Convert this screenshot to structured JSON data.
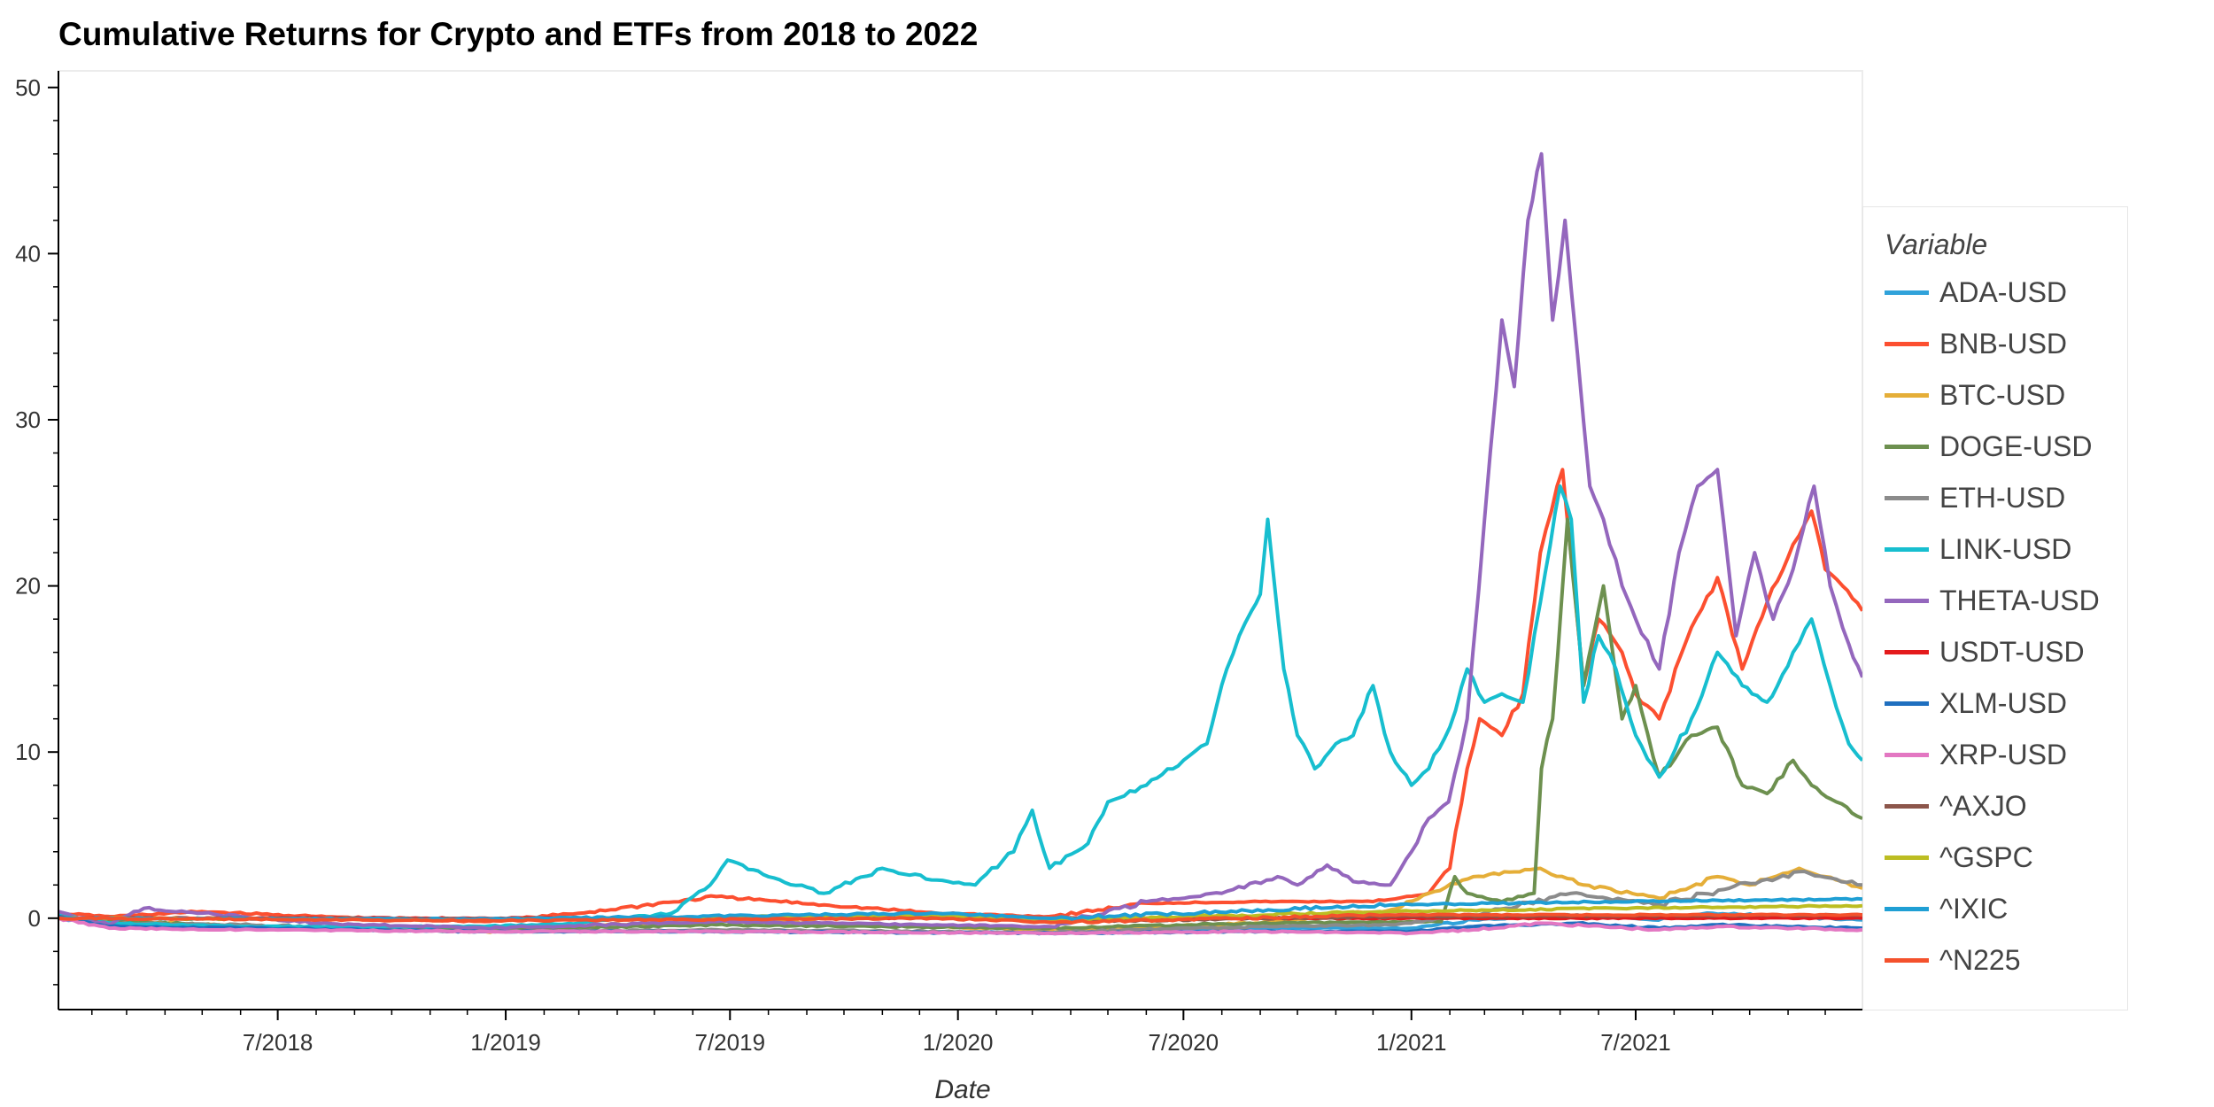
{
  "chart_data": {
    "type": "line",
    "title": "Cumulative Returns for Crypto and ETFs from 2018 to 2022",
    "xlabel": "Date",
    "ylabel": "",
    "xlim": [
      "2018-01-05",
      "2021-12-31"
    ],
    "ylim": [
      -5.5,
      51
    ],
    "x_ticks": [
      "7/2018",
      "1/2019",
      "7/2019",
      "1/2020",
      "7/2020",
      "1/2021",
      "7/2021"
    ],
    "y_ticks": [
      0,
      10,
      20,
      30,
      40,
      50
    ],
    "grid": false,
    "legend": {
      "title": "Variable",
      "position": "right"
    },
    "series": [
      {
        "name": "ADA-USD",
        "color": "#30a2da",
        "points": [
          [
            "2018-01-05",
            0
          ],
          [
            "2018-02-15",
            -0.4
          ],
          [
            "2018-06-01",
            -0.6
          ],
          [
            "2018-12-15",
            -0.8
          ],
          [
            "2019-06-01",
            -0.8
          ],
          [
            "2020-03-15",
            -0.85
          ],
          [
            "2020-09-01",
            -0.6
          ],
          [
            "2021-01-01",
            -0.6
          ],
          [
            "2021-02-20",
            -0.1
          ],
          [
            "2021-05-15",
            0.2
          ],
          [
            "2021-07-15",
            -0.1
          ],
          [
            "2021-09-01",
            0.3
          ],
          [
            "2021-12-31",
            -0.1
          ]
        ]
      },
      {
        "name": "BNB-USD",
        "color": "#fc4f30",
        "points": [
          [
            "2018-01-05",
            0.3
          ],
          [
            "2018-02-15",
            0.1
          ],
          [
            "2018-05-01",
            0.4
          ],
          [
            "2018-08-01",
            0.1
          ],
          [
            "2018-12-15",
            -0.2
          ],
          [
            "2019-03-01",
            0.3
          ],
          [
            "2019-06-20",
            1.3
          ],
          [
            "2019-09-15",
            0.8
          ],
          [
            "2019-12-15",
            0.3
          ],
          [
            "2020-03-15",
            0.1
          ],
          [
            "2020-06-01",
            0.9
          ],
          [
            "2020-09-01",
            1.0
          ],
          [
            "2020-12-01",
            1.0
          ],
          [
            "2021-01-15",
            1.5
          ],
          [
            "2021-02-01",
            3.0
          ],
          [
            "2021-02-15",
            9.0
          ],
          [
            "2021-02-25",
            12.0
          ],
          [
            "2021-03-15",
            11.0
          ],
          [
            "2021-04-01",
            13.5
          ],
          [
            "2021-04-15",
            22.0
          ],
          [
            "2021-05-03",
            27.0
          ],
          [
            "2021-05-20",
            14.0
          ],
          [
            "2021-06-01",
            18.0
          ],
          [
            "2021-06-20",
            16.0
          ],
          [
            "2021-07-01",
            13.5
          ],
          [
            "2021-07-20",
            12.0
          ],
          [
            "2021-08-15",
            17.5
          ],
          [
            "2021-09-05",
            20.5
          ],
          [
            "2021-09-25",
            15.0
          ],
          [
            "2021-10-15",
            19.0
          ],
          [
            "2021-11-05",
            22.5
          ],
          [
            "2021-11-20",
            24.5
          ],
          [
            "2021-12-01",
            21.0
          ],
          [
            "2021-12-15",
            20.0
          ],
          [
            "2021-12-31",
            18.5
          ]
        ]
      },
      {
        "name": "BTC-USD",
        "color": "#e5ae38",
        "points": [
          [
            "2018-01-05",
            0
          ],
          [
            "2018-06-01",
            -0.5
          ],
          [
            "2018-12-15",
            -0.8
          ],
          [
            "2019-06-20",
            -0.1
          ],
          [
            "2019-12-15",
            -0.5
          ],
          [
            "2020-03-15",
            -0.7
          ],
          [
            "2020-09-01",
            -0.3
          ],
          [
            "2020-12-15",
            0.5
          ],
          [
            "2021-01-15",
            1.5
          ],
          [
            "2021-02-20",
            2.5
          ],
          [
            "2021-04-15",
            3.0
          ],
          [
            "2021-05-20",
            2.0
          ],
          [
            "2021-07-20",
            1.2
          ],
          [
            "2021-09-05",
            2.5
          ],
          [
            "2021-10-01",
            2.0
          ],
          [
            "2021-11-10",
            3.0
          ],
          [
            "2021-12-01",
            2.5
          ],
          [
            "2021-12-31",
            1.8
          ]
        ]
      },
      {
        "name": "DOGE-USD",
        "color": "#6d904f",
        "points": [
          [
            "2018-01-05",
            0
          ],
          [
            "2018-06-01",
            -0.5
          ],
          [
            "2018-12-15",
            -0.7
          ],
          [
            "2019-06-20",
            -0.4
          ],
          [
            "2020-03-15",
            -0.6
          ],
          [
            "2020-09-01",
            -0.3
          ],
          [
            "2021-01-25",
            -0.2
          ],
          [
            "2021-02-05",
            2.5
          ],
          [
            "2021-02-15",
            1.5
          ],
          [
            "2021-03-15",
            1.0
          ],
          [
            "2021-04-10",
            1.5
          ],
          [
            "2021-04-16",
            9.0
          ],
          [
            "2021-04-25",
            12.0
          ],
          [
            "2021-05-07",
            24.0
          ],
          [
            "2021-05-20",
            14.0
          ],
          [
            "2021-06-05",
            20.0
          ],
          [
            "2021-06-20",
            12.0
          ],
          [
            "2021-07-01",
            14.0
          ],
          [
            "2021-07-20",
            8.5
          ],
          [
            "2021-08-15",
            11.0
          ],
          [
            "2021-09-05",
            11.5
          ],
          [
            "2021-09-25",
            8.0
          ],
          [
            "2021-10-15",
            7.5
          ],
          [
            "2021-11-05",
            9.5
          ],
          [
            "2021-11-20",
            8.0
          ],
          [
            "2021-12-10",
            7.0
          ],
          [
            "2021-12-31",
            6.0
          ]
        ]
      },
      {
        "name": "ETH-USD",
        "color": "#8b8b8b",
        "points": [
          [
            "2018-01-05",
            0.2
          ],
          [
            "2018-02-15",
            -0.3
          ],
          [
            "2018-06-01",
            -0.4
          ],
          [
            "2018-12-15",
            -0.8
          ],
          [
            "2019-06-20",
            -0.7
          ],
          [
            "2020-03-15",
            -0.85
          ],
          [
            "2020-09-01",
            -0.5
          ],
          [
            "2020-12-15",
            -0.4
          ],
          [
            "2021-02-20",
            0.2
          ],
          [
            "2021-05-10",
            1.5
          ],
          [
            "2021-07-20",
            0.8
          ],
          [
            "2021-11-10",
            2.8
          ],
          [
            "2021-12-31",
            2.0
          ]
        ]
      },
      {
        "name": "LINK-USD",
        "color": "#17becf",
        "points": [
          [
            "2018-01-05",
            0.3
          ],
          [
            "2018-02-15",
            -0.3
          ],
          [
            "2018-06-01",
            -0.5
          ],
          [
            "2018-12-15",
            -0.5
          ],
          [
            "2019-03-01",
            -0.3
          ],
          [
            "2019-05-15",
            0.3
          ],
          [
            "2019-06-15",
            2.0
          ],
          [
            "2019-06-29",
            3.5
          ],
          [
            "2019-08-01",
            2.5
          ],
          [
            "2019-09-15",
            1.5
          ],
          [
            "2019-11-01",
            3.0
          ],
          [
            "2019-12-15",
            2.3
          ],
          [
            "2020-01-15",
            2.0
          ],
          [
            "2020-02-15",
            4.0
          ],
          [
            "2020-03-01",
            6.5
          ],
          [
            "2020-03-15",
            3.0
          ],
          [
            "2020-04-15",
            4.5
          ],
          [
            "2020-05-01",
            7.0
          ],
          [
            "2020-06-01",
            8.0
          ],
          [
            "2020-07-01",
            9.5
          ],
          [
            "2020-07-20",
            10.5
          ],
          [
            "2020-08-05",
            15.0
          ],
          [
            "2020-08-15",
            17.0
          ],
          [
            "2020-08-25",
            18.5
          ],
          [
            "2020-09-01",
            19.5
          ],
          [
            "2020-09-07",
            24.0
          ],
          [
            "2020-09-20",
            15.0
          ],
          [
            "2020-10-01",
            11.0
          ],
          [
            "2020-10-15",
            9.0
          ],
          [
            "2020-11-01",
            10.5
          ],
          [
            "2020-11-15",
            11.0
          ],
          [
            "2020-12-01",
            14.0
          ],
          [
            "2020-12-15",
            10.0
          ],
          [
            "2021-01-01",
            8.0
          ],
          [
            "2021-01-15",
            9.0
          ],
          [
            "2021-02-01",
            11.5
          ],
          [
            "2021-02-15",
            15.0
          ],
          [
            "2021-03-01",
            13.0
          ],
          [
            "2021-03-15",
            13.5
          ],
          [
            "2021-04-01",
            13.0
          ],
          [
            "2021-04-15",
            19.0
          ],
          [
            "2021-05-01",
            26.0
          ],
          [
            "2021-05-10",
            24.0
          ],
          [
            "2021-05-20",
            13.0
          ],
          [
            "2021-06-01",
            17.0
          ],
          [
            "2021-06-15",
            15.0
          ],
          [
            "2021-07-01",
            11.0
          ],
          [
            "2021-07-20",
            8.5
          ],
          [
            "2021-08-15",
            12.0
          ],
          [
            "2021-09-05",
            16.0
          ],
          [
            "2021-09-25",
            14.0
          ],
          [
            "2021-10-15",
            13.0
          ],
          [
            "2021-11-05",
            16.0
          ],
          [
            "2021-11-20",
            18.0
          ],
          [
            "2021-12-05",
            14.0
          ],
          [
            "2021-12-20",
            10.5
          ],
          [
            "2021-12-31",
            9.5
          ]
        ]
      },
      {
        "name": "THETA-USD",
        "color": "#9467bd",
        "points": [
          [
            "2018-01-05",
            0.4
          ],
          [
            "2018-02-15",
            -0.4
          ],
          [
            "2018-03-15",
            0.6
          ],
          [
            "2018-06-01",
            0.1
          ],
          [
            "2018-08-01",
            -0.3
          ],
          [
            "2018-12-15",
            -0.6
          ],
          [
            "2019-06-20",
            -0.2
          ],
          [
            "2019-12-15",
            -0.4
          ],
          [
            "2020-03-15",
            -0.5
          ],
          [
            "2020-06-01",
            1.0
          ],
          [
            "2020-08-01",
            1.5
          ],
          [
            "2020-09-15",
            2.5
          ],
          [
            "2020-10-01",
            2.0
          ],
          [
            "2020-10-25",
            3.2
          ],
          [
            "2020-11-15",
            2.2
          ],
          [
            "2020-12-15",
            2.0
          ],
          [
            "2021-01-01",
            4.0
          ],
          [
            "2021-01-15",
            6.0
          ],
          [
            "2021-01-31",
            7.0
          ],
          [
            "2021-02-15",
            12.0
          ],
          [
            "2021-03-01",
            24.0
          ],
          [
            "2021-03-15",
            36.0
          ],
          [
            "2021-03-25",
            32.0
          ],
          [
            "2021-04-05",
            42.0
          ],
          [
            "2021-04-16",
            46.0
          ],
          [
            "2021-04-25",
            36.0
          ],
          [
            "2021-05-05",
            42.0
          ],
          [
            "2021-05-15",
            34.0
          ],
          [
            "2021-05-25",
            26.0
          ],
          [
            "2021-06-05",
            24.0
          ],
          [
            "2021-06-20",
            20.0
          ],
          [
            "2021-07-01",
            18.0
          ],
          [
            "2021-07-20",
            15.0
          ],
          [
            "2021-08-05",
            22.0
          ],
          [
            "2021-08-20",
            26.0
          ],
          [
            "2021-09-05",
            27.0
          ],
          [
            "2021-09-20",
            17.0
          ],
          [
            "2021-10-05",
            22.0
          ],
          [
            "2021-10-20",
            18.0
          ],
          [
            "2021-11-05",
            21.0
          ],
          [
            "2021-11-22",
            26.0
          ],
          [
            "2021-12-05",
            20.0
          ],
          [
            "2021-12-20",
            16.5
          ],
          [
            "2021-12-31",
            14.5
          ]
        ]
      },
      {
        "name": "USDT-USD",
        "color": "#e41a1c",
        "points": [
          [
            "2018-01-05",
            0
          ],
          [
            "2018-12-15",
            0
          ],
          [
            "2019-12-15",
            0
          ],
          [
            "2020-12-15",
            0
          ],
          [
            "2021-12-31",
            0
          ]
        ]
      },
      {
        "name": "XLM-USD",
        "color": "#1f6fbf",
        "points": [
          [
            "2018-01-05",
            0.1
          ],
          [
            "2018-02-15",
            -0.5
          ],
          [
            "2018-06-01",
            -0.6
          ],
          [
            "2018-12-15",
            -0.8
          ],
          [
            "2019-06-20",
            -0.8
          ],
          [
            "2020-03-15",
            -0.9
          ],
          [
            "2020-09-01",
            -0.8
          ],
          [
            "2021-01-01",
            -0.8
          ],
          [
            "2021-02-20",
            -0.5
          ],
          [
            "2021-05-15",
            -0.3
          ],
          [
            "2021-07-20",
            -0.6
          ],
          [
            "2021-09-05",
            -0.4
          ],
          [
            "2021-12-31",
            -0.6
          ]
        ]
      },
      {
        "name": "XRP-USD",
        "color": "#e377c2",
        "points": [
          [
            "2018-01-05",
            0
          ],
          [
            "2018-02-15",
            -0.6
          ],
          [
            "2018-06-01",
            -0.7
          ],
          [
            "2018-12-15",
            -0.8
          ],
          [
            "2019-06-20",
            -0.8
          ],
          [
            "2020-03-15",
            -0.9
          ],
          [
            "2020-09-01",
            -0.8
          ],
          [
            "2021-01-01",
            -0.9
          ],
          [
            "2021-02-20",
            -0.7
          ],
          [
            "2021-04-15",
            -0.3
          ],
          [
            "2021-07-20",
            -0.7
          ],
          [
            "2021-09-05",
            -0.5
          ],
          [
            "2021-12-31",
            -0.7
          ]
        ]
      },
      {
        "name": "^AXJO",
        "color": "#8c564b",
        "points": [
          [
            "2018-01-05",
            0
          ],
          [
            "2018-12-15",
            -0.05
          ],
          [
            "2019-12-15",
            0.1
          ],
          [
            "2020-03-20",
            -0.2
          ],
          [
            "2020-12-15",
            0.1
          ],
          [
            "2021-12-31",
            0.2
          ]
        ]
      },
      {
        "name": "^GSPC",
        "color": "#bcbd22",
        "points": [
          [
            "2018-01-05",
            0
          ],
          [
            "2018-12-20",
            -0.1
          ],
          [
            "2019-12-15",
            0.2
          ],
          [
            "2020-03-20",
            -0.1
          ],
          [
            "2020-12-15",
            0.4
          ],
          [
            "2021-06-15",
            0.6
          ],
          [
            "2021-12-31",
            0.75
          ]
        ]
      },
      {
        "name": "^IXIC",
        "color": "#1f9fd4",
        "points": [
          [
            "2018-01-05",
            0
          ],
          [
            "2018-12-20",
            -0.05
          ],
          [
            "2019-12-15",
            0.3
          ],
          [
            "2020-03-20",
            0.0
          ],
          [
            "2020-12-15",
            0.8
          ],
          [
            "2021-06-15",
            1.0
          ],
          [
            "2021-12-31",
            1.15
          ]
        ]
      },
      {
        "name": "^N225",
        "color": "#f4512c",
        "points": [
          [
            "2018-01-05",
            0
          ],
          [
            "2018-12-20",
            -0.15
          ],
          [
            "2019-12-15",
            0.0
          ],
          [
            "2020-03-20",
            -0.25
          ],
          [
            "2020-12-15",
            0.2
          ],
          [
            "2021-12-31",
            0.2
          ]
        ]
      }
    ]
  }
}
